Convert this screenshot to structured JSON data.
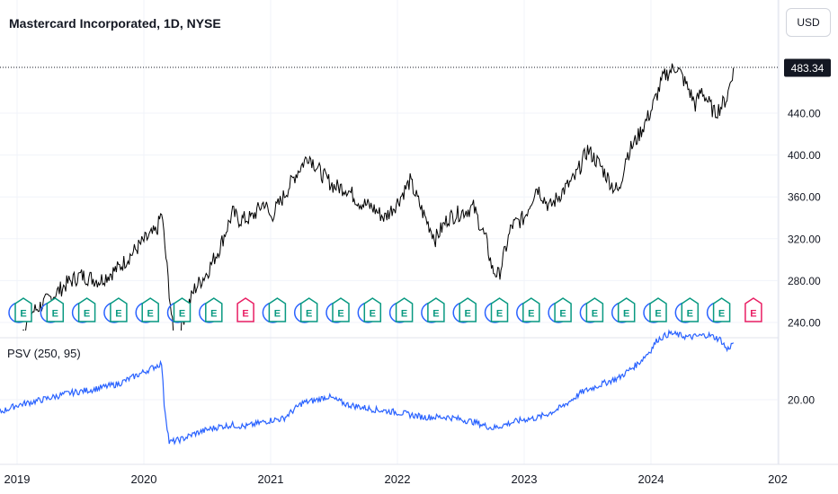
{
  "header": {
    "title": "Mastercard Incorporated, 1D, NYSE",
    "currency": "USD"
  },
  "indicator": {
    "title": "PSV (250, 95)"
  },
  "colors": {
    "price_line": "#000000",
    "psv_line": "#2962ff",
    "grid": "#f0f3fa",
    "earnings_teal": "#089981",
    "earnings_pink": "#e91e63",
    "earnings_blue": "#2962ff",
    "last_price_bg": "#131722"
  },
  "chart_data": [
    {
      "type": "line",
      "title": "Mastercard Incorporated, 1D, NYSE",
      "xlabel": "",
      "ylabel": "",
      "x_ticks": [
        "2019",
        "2020",
        "2021",
        "2022",
        "2023",
        "2024",
        "202"
      ],
      "y_ticks": [
        240,
        280,
        320,
        360,
        400,
        440
      ],
      "y_tick_labels": [
        "240.00",
        "280.00",
        "320.00",
        "360.00",
        "400.00",
        "440.00"
      ],
      "ylim": [
        240,
        490
      ],
      "last_value": 483.34,
      "last_value_label": "483.34",
      "grid": true,
      "series": [
        {
          "x": [
            2018.6,
            2018.75,
            2018.85,
            2019.0,
            2019.1,
            2019.25,
            2019.4,
            2019.5,
            2019.65,
            2019.8,
            2019.9,
            2020.0,
            2020.1,
            2020.14,
            2020.2,
            2020.25,
            2020.3,
            2020.4,
            2020.5,
            2020.6,
            2020.7,
            2020.75,
            2020.85,
            2020.95,
            2021.0,
            2021.1,
            2021.2,
            2021.3,
            2021.4,
            2021.5,
            2021.6,
            2021.7,
            2021.8,
            2021.9,
            2022.0,
            2022.1,
            2022.2,
            2022.3,
            2022.4,
            2022.5,
            2022.6,
            2022.7,
            2022.75,
            2022.8,
            2022.9,
            2023.0,
            2023.1,
            2023.2,
            2023.3,
            2023.4,
            2023.5,
            2023.6,
            2023.7,
            2023.75,
            2023.8,
            2023.9,
            2024.0,
            2024.1,
            2024.2,
            2024.3,
            2024.35,
            2024.4,
            2024.5,
            2024.55,
            2024.6,
            2024.65
          ],
          "values": [
            232,
            222,
            205,
            220,
            248,
            262,
            278,
            285,
            280,
            292,
            305,
            318,
            327,
            345,
            270,
            205,
            240,
            272,
            288,
            312,
            345,
            338,
            340,
            355,
            340,
            360,
            382,
            400,
            382,
            370,
            368,
            355,
            350,
            340,
            355,
            375,
            345,
            320,
            340,
            345,
            350,
            318,
            290,
            285,
            332,
            340,
            370,
            350,
            365,
            378,
            405,
            390,
            370,
            365,
            398,
            418,
            442,
            475,
            485,
            462,
            448,
            462,
            440,
            446,
            455,
            483.34
          ]
        }
      ]
    },
    {
      "type": "line",
      "title": "PSV (250, 95)",
      "xlabel": "",
      "ylabel": "",
      "y_ticks": [
        20
      ],
      "y_tick_labels": [
        "20.00"
      ],
      "ylim": [
        14,
        33
      ],
      "grid": true,
      "series": [
        {
          "x": [
            2018.6,
            2018.7,
            2018.8,
            2019.0,
            2019.2,
            2019.4,
            2019.6,
            2019.8,
            2020.0,
            2020.14,
            2020.16,
            2020.2,
            2020.3,
            2020.4,
            2020.5,
            2020.6,
            2020.7,
            2020.8,
            2020.9,
            2021.0,
            2021.1,
            2021.25,
            2021.35,
            2021.45,
            2021.6,
            2021.8,
            2022.0,
            2022.2,
            2022.4,
            2022.6,
            2022.75,
            2022.8,
            2022.9,
            2023.0,
            2023.1,
            2023.2,
            2023.3,
            2023.45,
            2023.6,
            2023.75,
            2023.9,
            2024.0,
            2024.05,
            2024.15,
            2024.3,
            2024.45,
            2024.55,
            2024.6,
            2024.65
          ],
          "values": [
            19.8,
            18.9,
            18.0,
            19.3,
            20.0,
            20.8,
            21.3,
            22.0,
            23.5,
            24.6,
            19.5,
            14.6,
            15.0,
            15.7,
            16.2,
            16.6,
            16.8,
            16.6,
            17.0,
            17.4,
            17.6,
            19.6,
            19.9,
            20.4,
            19.4,
            18.8,
            18.4,
            17.8,
            17.8,
            17.2,
            16.4,
            16.6,
            17.1,
            17.5,
            17.7,
            18.3,
            19.1,
            20.9,
            21.9,
            22.8,
            24.6,
            26.3,
            27.6,
            28.4,
            27.9,
            28.2,
            27.6,
            26.3,
            27.2
          ]
        }
      ]
    }
  ]
}
